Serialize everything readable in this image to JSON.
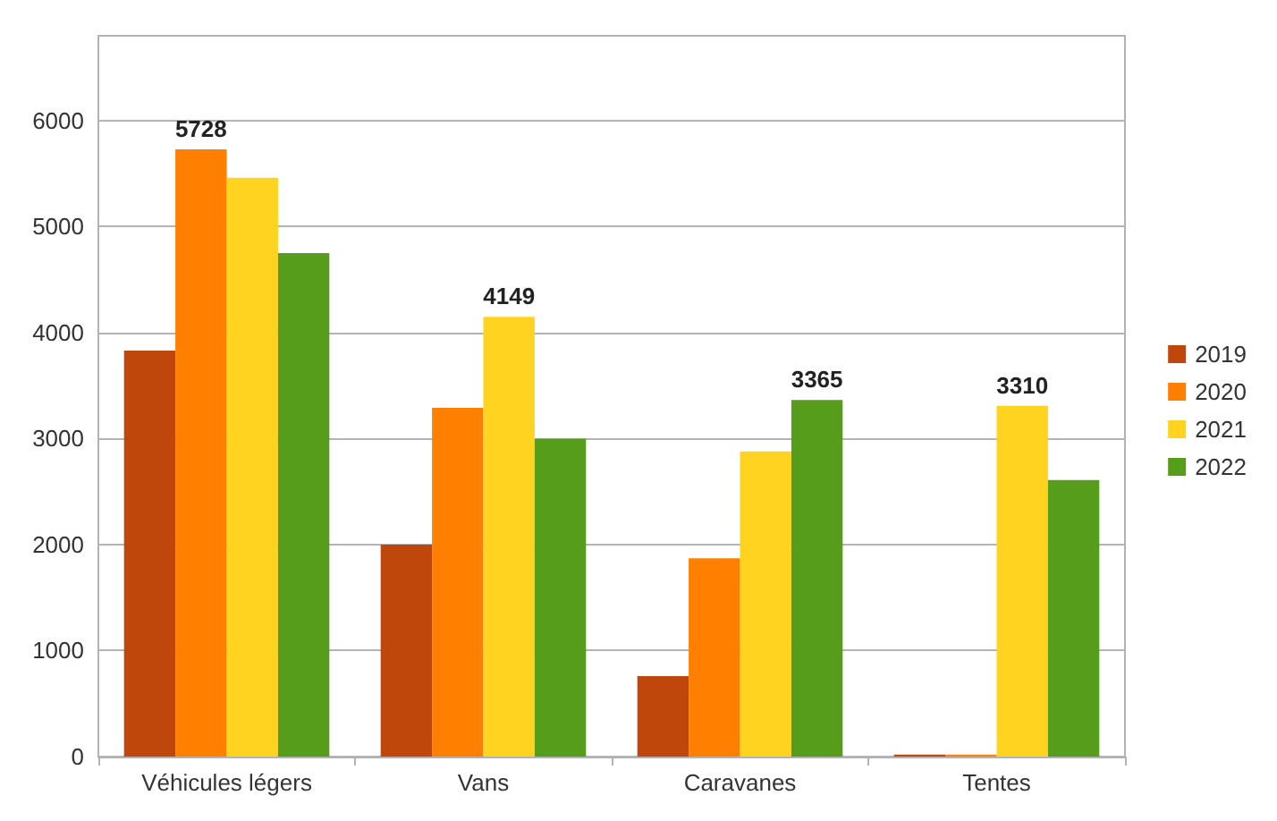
{
  "chart_data": {
    "type": "bar",
    "categories": [
      "Véhicules légers",
      "Vans",
      "Caravanes",
      "Tentes"
    ],
    "series": [
      {
        "name": "2019",
        "color": "#c0470b",
        "values": [
          3830,
          2000,
          760,
          20
        ],
        "value_labels": [
          null,
          null,
          null,
          null
        ]
      },
      {
        "name": "2020",
        "color": "#ff7f00",
        "values": [
          5728,
          3290,
          1870,
          20
        ],
        "value_labels": [
          "5728",
          null,
          null,
          null
        ]
      },
      {
        "name": "2021",
        "color": "#ffd320",
        "values": [
          5460,
          4149,
          2880,
          3310
        ],
        "value_labels": [
          null,
          "4149",
          null,
          "3310"
        ]
      },
      {
        "name": "2022",
        "color": "#579d1c",
        "values": [
          4750,
          3000,
          3365,
          2610
        ],
        "value_labels": [
          null,
          null,
          "3365",
          null
        ]
      }
    ],
    "ylim": [
      0,
      6800
    ],
    "yticks": [
      0,
      1000,
      2000,
      3000,
      4000,
      5000,
      6000
    ],
    "grid": "y",
    "legend": "right"
  }
}
